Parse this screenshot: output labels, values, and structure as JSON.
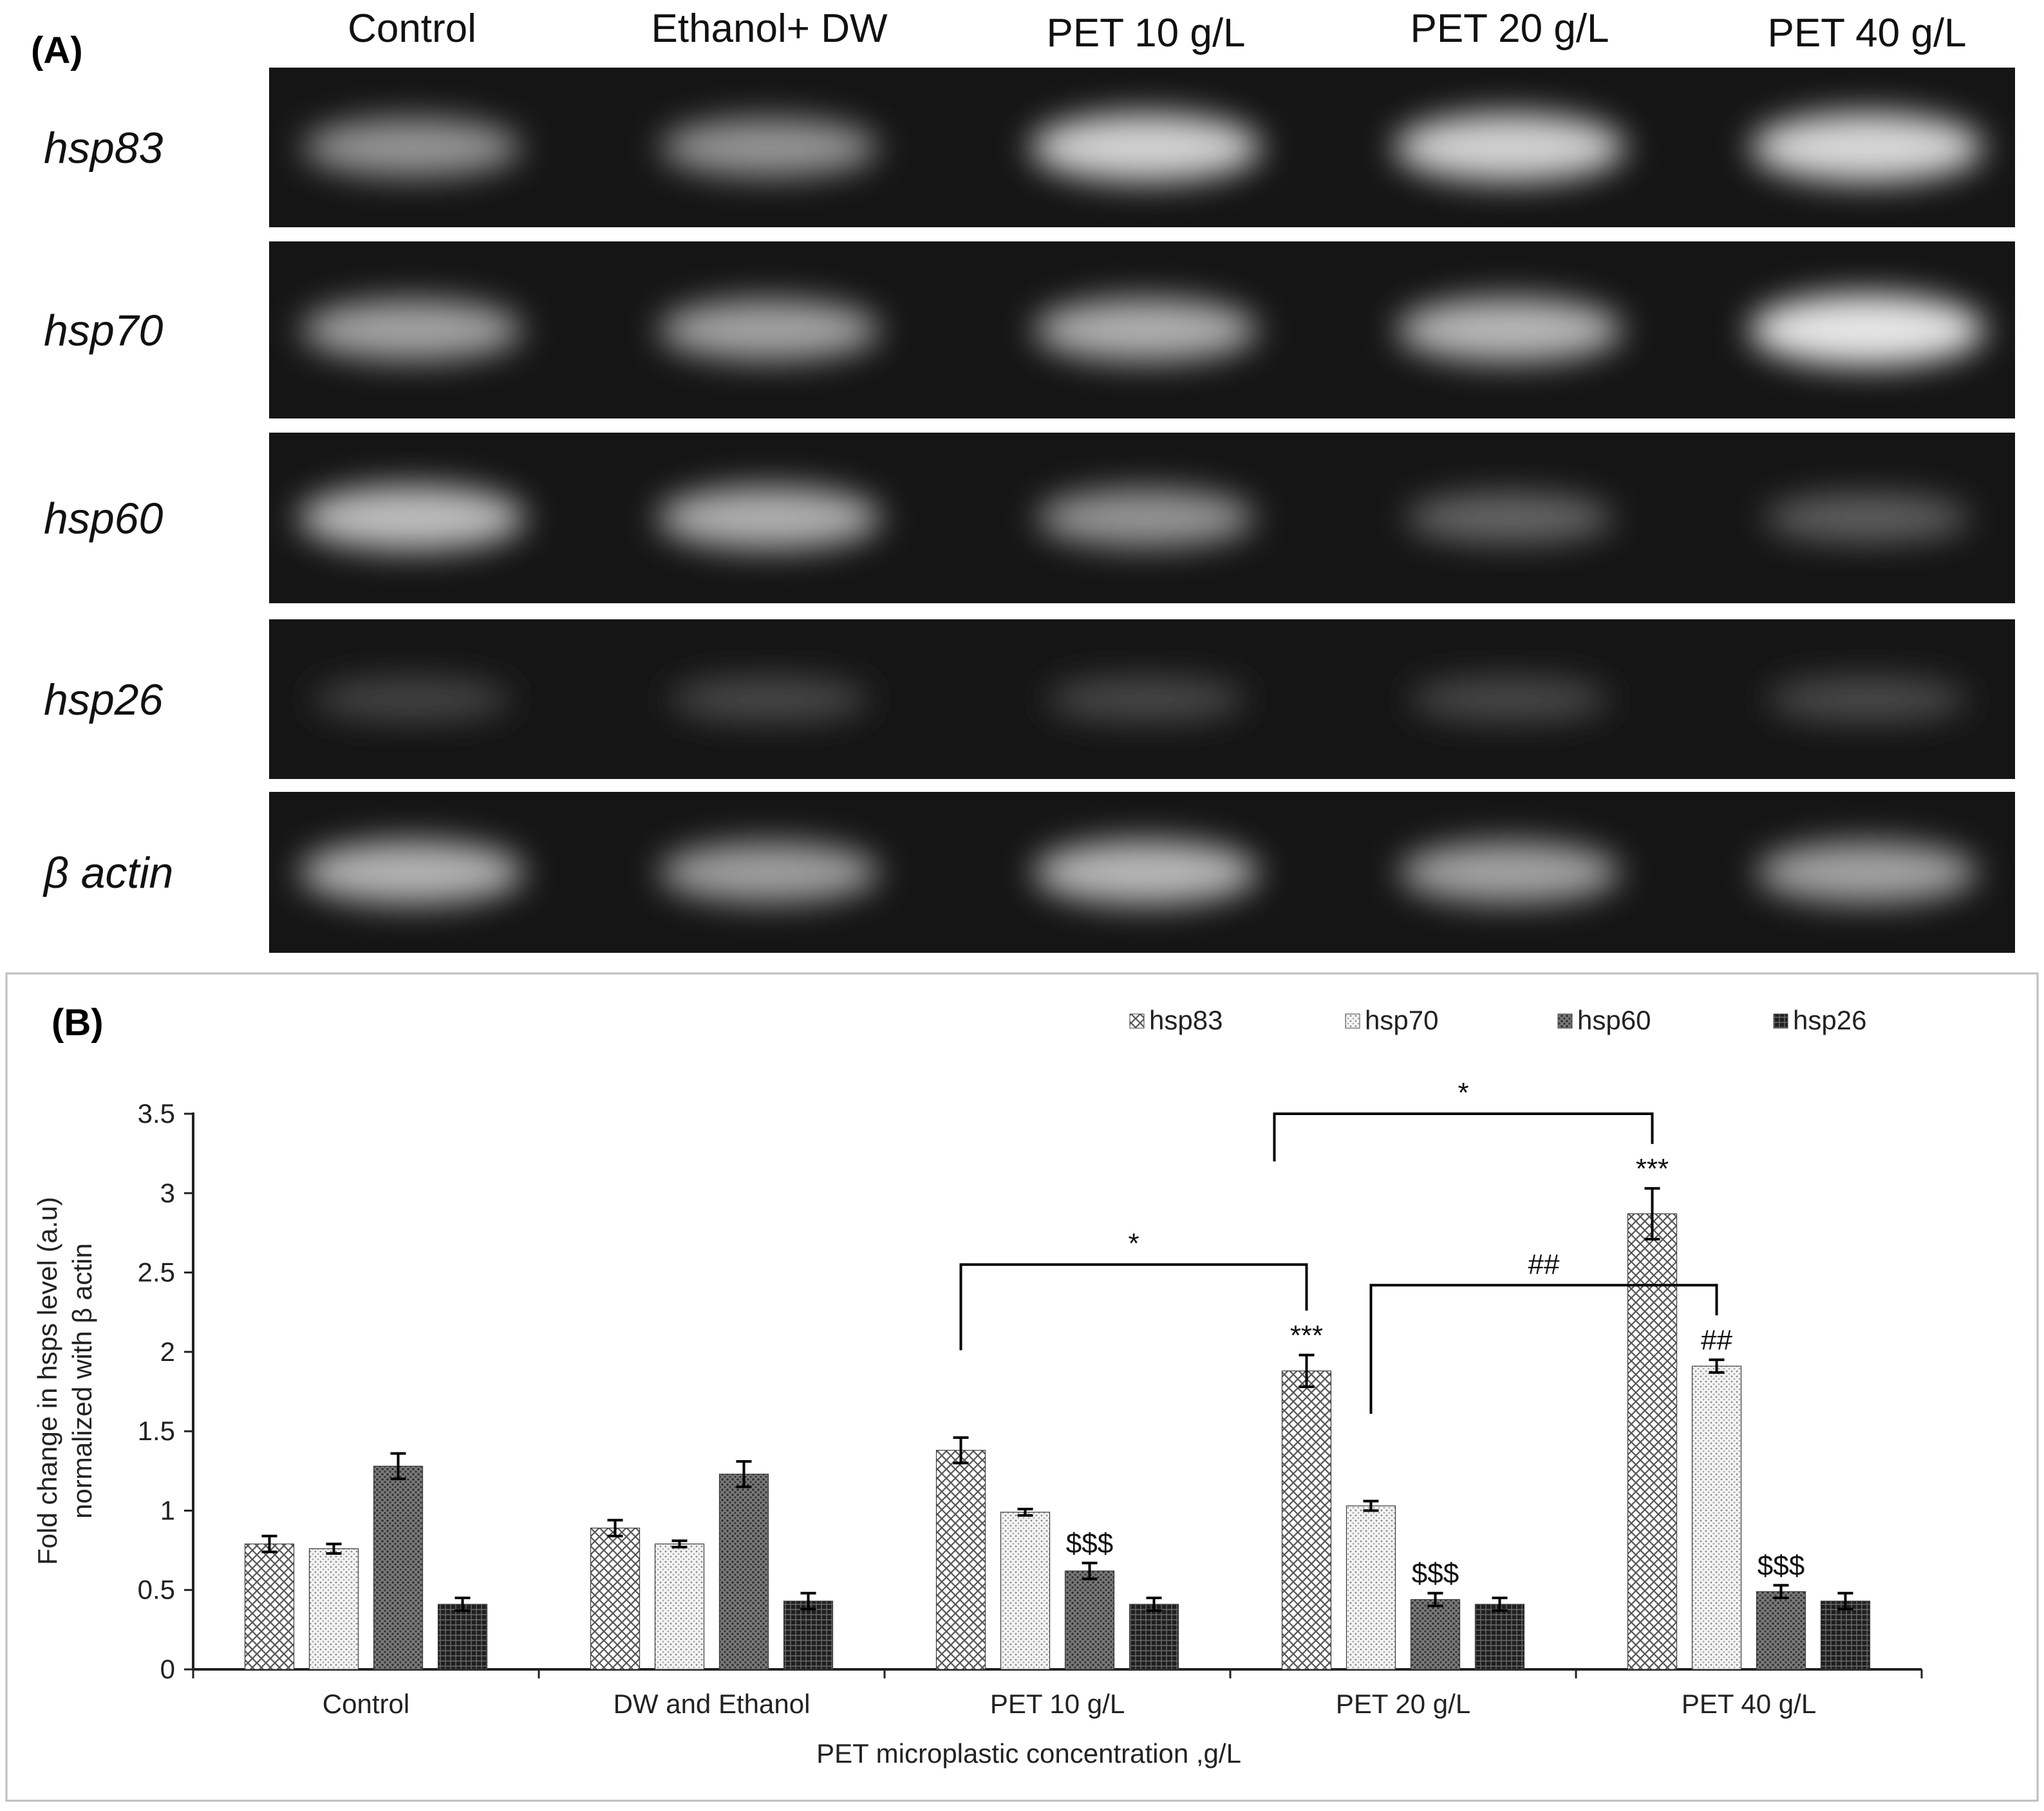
{
  "panel_a": {
    "label": "(A)",
    "columns": [
      "Control",
      "Ethanol+ DW",
      "PET 10 g/L",
      "PET 20 g/L",
      "PET 40 g/L"
    ],
    "genes": [
      "hsp83",
      "hsp70",
      "hsp60",
      "hsp26",
      "β actin"
    ],
    "band_intensity": [
      [
        0.55,
        0.55,
        0.85,
        0.85,
        0.88
      ],
      [
        0.62,
        0.62,
        0.68,
        0.72,
        0.95
      ],
      [
        0.75,
        0.68,
        0.55,
        0.32,
        0.28
      ],
      [
        0.14,
        0.17,
        0.16,
        0.17,
        0.18
      ],
      [
        0.7,
        0.6,
        0.72,
        0.62,
        0.62
      ]
    ]
  },
  "panel_b": {
    "label": "(B)"
  },
  "chart_data": {
    "type": "bar",
    "categories": [
      "Control",
      "DW and Ethanol",
      "PET 10 g/L",
      "PET 20 g/L",
      "PET 40 g/L"
    ],
    "series": [
      {
        "name": "hsp83",
        "values": [
          0.79,
          0.89,
          1.38,
          1.88,
          2.87
        ],
        "errors": [
          0.05,
          0.05,
          0.08,
          0.1,
          0.16
        ],
        "pattern": "cross-hatch"
      },
      {
        "name": "hsp70",
        "values": [
          0.76,
          0.79,
          0.99,
          1.03,
          1.91
        ],
        "errors": [
          0.03,
          0.02,
          0.02,
          0.03,
          0.04
        ],
        "pattern": "light-dots"
      },
      {
        "name": "hsp60",
        "values": [
          1.28,
          1.23,
          0.62,
          0.44,
          0.49
        ],
        "errors": [
          0.08,
          0.08,
          0.05,
          0.04,
          0.04
        ],
        "pattern": "dark-dots"
      },
      {
        "name": "hsp26",
        "values": [
          0.41,
          0.43,
          0.41,
          0.41,
          0.43
        ],
        "errors": [
          0.04,
          0.05,
          0.04,
          0.04,
          0.05
        ],
        "pattern": "dense-dark"
      }
    ],
    "title": "",
    "xlabel": "PET microplastic concentration ,g/L",
    "ylabel": [
      "Fold change in hsps level (a.u)",
      "normalized with β actin"
    ],
    "ylim": [
      0,
      3.5
    ],
    "yticks": [
      "0",
      "0.5",
      "1",
      "1.5",
      "2",
      "2.5",
      "3",
      "3.5"
    ],
    "grid": false,
    "legend_position": "top-right",
    "bar_annotations": [
      {
        "category": 2,
        "series": 2,
        "text": "$$$"
      },
      {
        "category": 3,
        "series": 0,
        "text": "***"
      },
      {
        "category": 3,
        "series": 2,
        "text": "$$$"
      },
      {
        "category": 4,
        "series": 0,
        "text": "***"
      },
      {
        "category": 4,
        "series": 1,
        "text": "##"
      },
      {
        "category": 4,
        "series": 2,
        "text": "$$$"
      }
    ],
    "brackets": [
      {
        "from": {
          "category": 2,
          "series": 0
        },
        "to": {
          "category": 3,
          "series": 0
        },
        "level": 2.55,
        "text": "*"
      },
      {
        "from": {
          "category": 3,
          "series": 1
        },
        "to": {
          "category": 4,
          "series": 1
        },
        "level": 2.42,
        "text": "##"
      },
      {
        "from": {
          "category": 3,
          "series": -0.5
        },
        "to": {
          "category": 4,
          "series": 0
        },
        "level": 3.5,
        "text": "*"
      }
    ]
  }
}
